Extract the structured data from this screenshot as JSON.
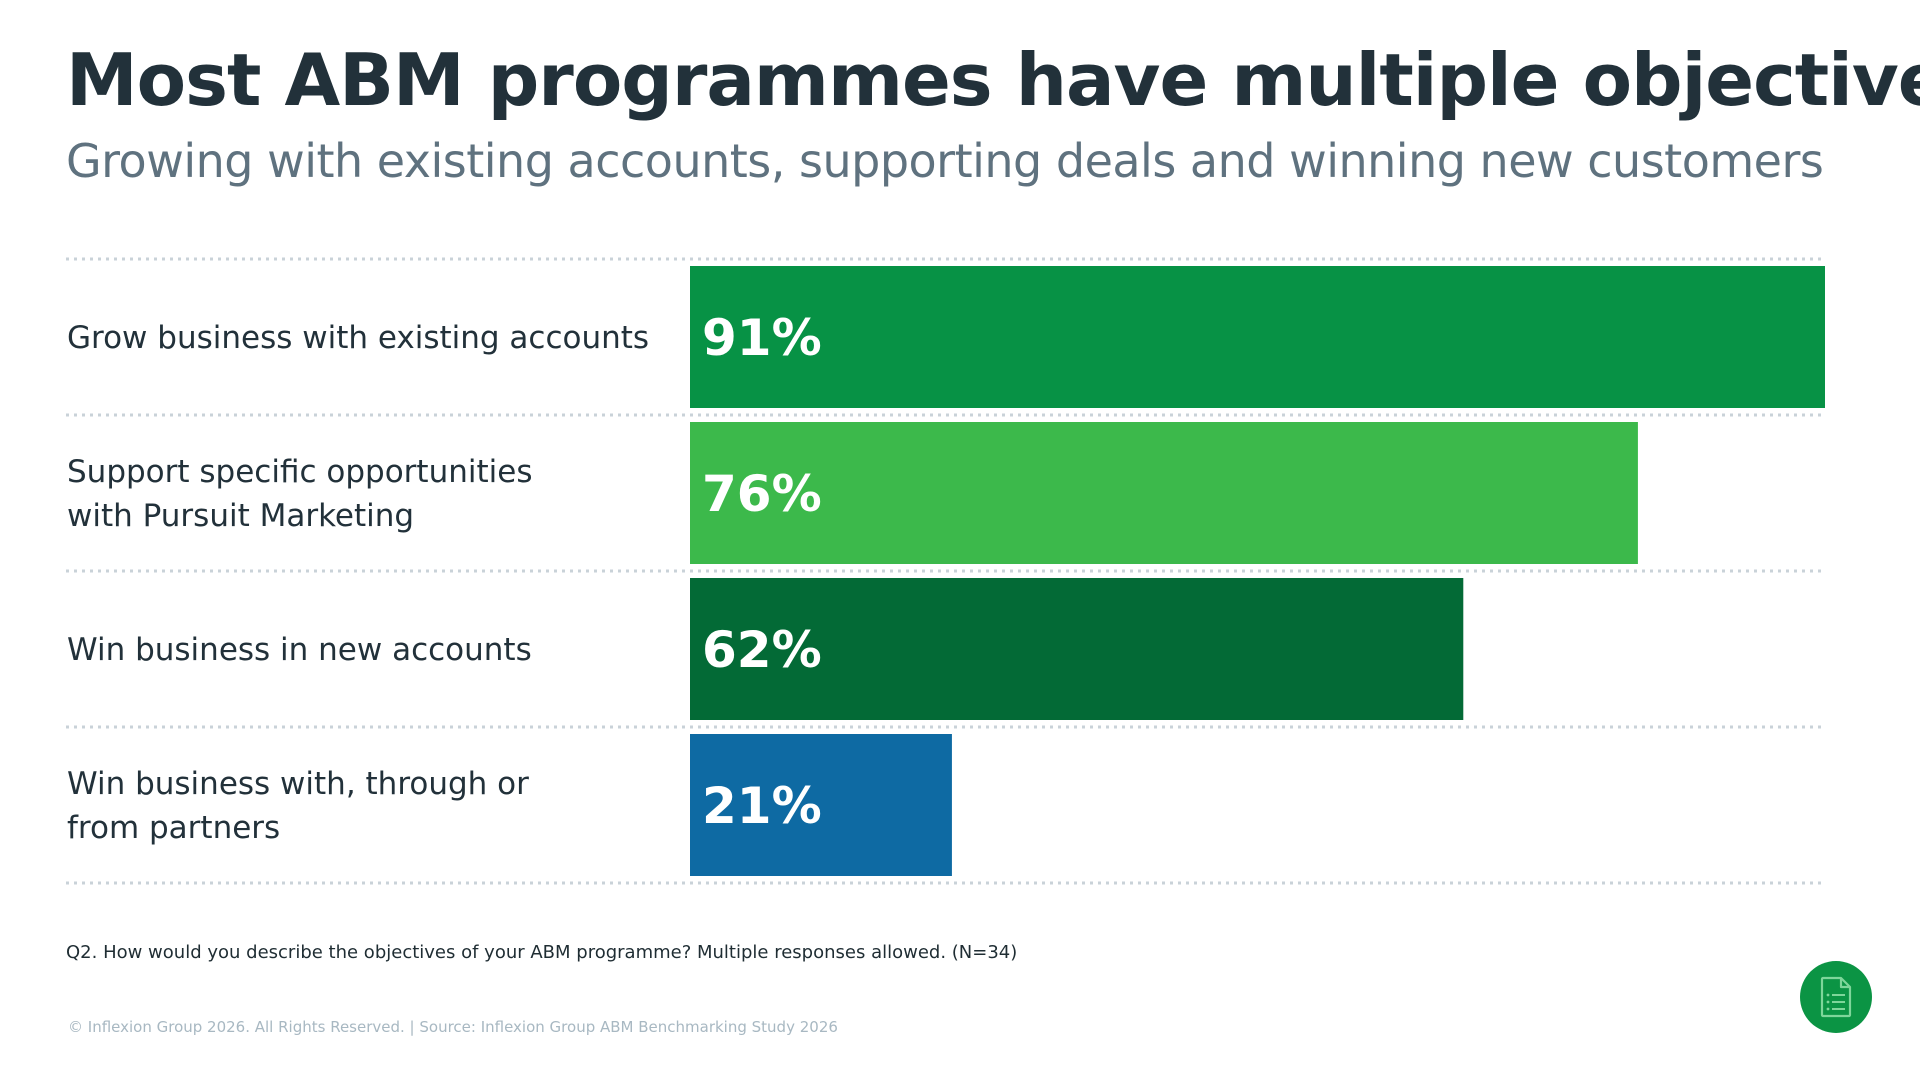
{
  "header": {
    "title": "Most ABM programmes have multiple objectives",
    "subtitle": "Growing with existing accounts, supporting deals and winning new customers"
  },
  "chart_data": {
    "type": "bar",
    "orientation": "horizontal",
    "categories": [
      "Grow business with existing accounts",
      "Support specific opportunities with Pursuit Marketing",
      "Win business in new accounts",
      "Win business with, through or from partners"
    ],
    "category_lines": [
      [
        "Grow business with existing accounts"
      ],
      [
        "Support specific opportunities",
        "with Pursuit Marketing"
      ],
      [
        "Win business in new accounts"
      ],
      [
        "Win business with, through or",
        "from partners"
      ]
    ],
    "values": [
      91,
      76,
      62,
      21
    ],
    "value_labels": [
      "91%",
      "76%",
      "62%",
      "21%"
    ],
    "colors": [
      "#079245",
      "#3cb94b",
      "#036a36",
      "#0e6aa3"
    ],
    "unit": "%",
    "xlim": [
      0,
      91
    ],
    "grid": false,
    "legend": "none"
  },
  "footer": {
    "question": "Q2. How would you describe the objectives of your ABM programme? Multiple responses allowed. (N=34)",
    "copyright": "© Inflexion Group 2026. All Rights Reserved. | Source: Inflexion Group ABM Benchmarking Study 2026"
  },
  "fab": {
    "icon": "document-checklist-icon",
    "color": "#0b9444"
  }
}
